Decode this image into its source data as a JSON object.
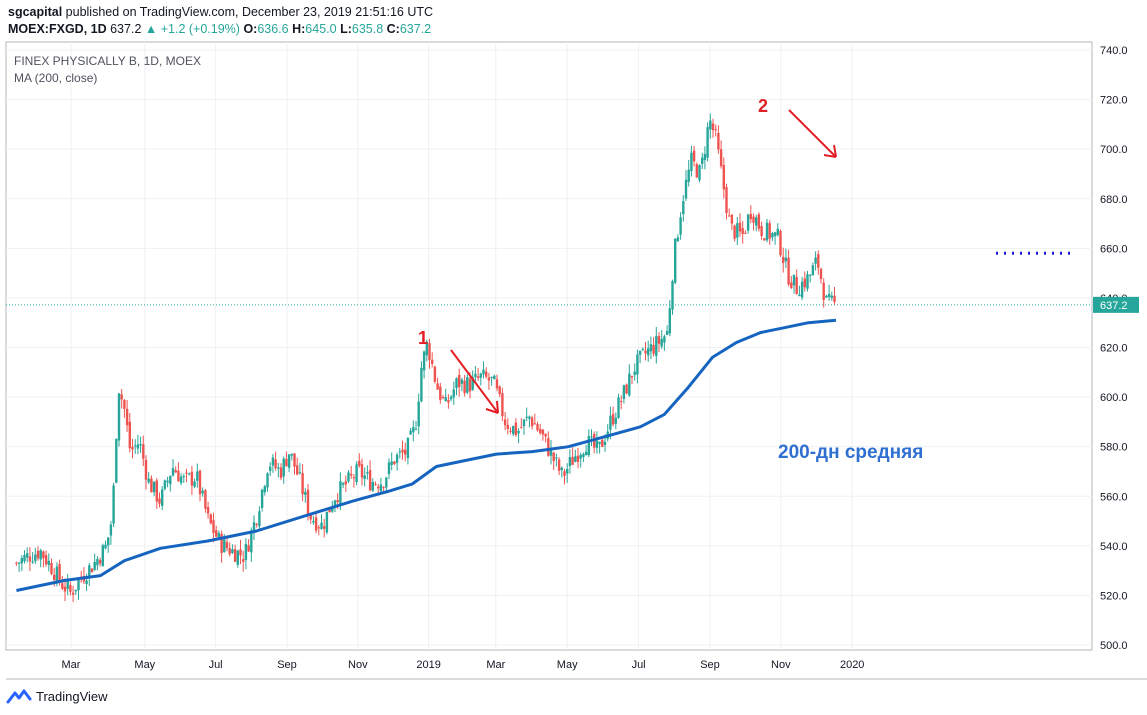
{
  "header": {
    "publisher": "sgcapital",
    "published_text": "published on TradingView.com, December 23, 2019 21:51:16 UTC",
    "symbol": "MOEX:FXGD, 1D",
    "last": "637.2",
    "change": "+1.2 (+0.19%)",
    "o_label": "O:",
    "o": "636.6",
    "h_label": "H:",
    "h": "645.0",
    "l_label": "L:",
    "l": "635.8",
    "c_label": "C:",
    "c": "637.2"
  },
  "footer": {
    "brand": "TradingView",
    "logo_icon": "tradingview-logo-icon"
  },
  "chart_data": {
    "type": "candlestick",
    "instrument": "FINEX PHYSICALLY B, 1D, MOEX",
    "indicator": "MA (200, close)",
    "ylim": [
      500,
      740
    ],
    "y_ticks": [
      "740.0",
      "720.0",
      "700.0",
      "680.0",
      "660.0",
      "640.0",
      "620.0",
      "600.0",
      "580.0",
      "560.0",
      "540.0",
      "520.0",
      "500.0"
    ],
    "x_ticks": [
      {
        "label": "Mar",
        "t": 0.091
      },
      {
        "label": "May",
        "t": 0.214
      },
      {
        "label": "Jul",
        "t": 0.332
      },
      {
        "label": "Sep",
        "t": 0.451
      },
      {
        "label": "Nov",
        "t": 0.569
      },
      {
        "label": "2019",
        "t": 0.687
      },
      {
        "label": "Mar",
        "t": 0.799
      },
      {
        "label": "May",
        "t": 0.918
      },
      {
        "label": "Jul",
        "t": 1.037
      },
      {
        "label": "Sep",
        "t": 1.156
      },
      {
        "label": "Nov",
        "t": 1.274
      },
      {
        "label": "2020",
        "t": 1.393
      }
    ],
    "last_price": 637.2,
    "last_price_label": "637.2",
    "close_path": [
      [
        0.0,
        533
      ],
      [
        0.02,
        536
      ],
      [
        0.04,
        538
      ],
      [
        0.06,
        531
      ],
      [
        0.075,
        525
      ],
      [
        0.09,
        521
      ],
      [
        0.11,
        528
      ],
      [
        0.13,
        533
      ],
      [
        0.15,
        540
      ],
      [
        0.16,
        552
      ],
      [
        0.17,
        605
      ],
      [
        0.18,
        595
      ],
      [
        0.19,
        578
      ],
      [
        0.205,
        582
      ],
      [
        0.22,
        566
      ],
      [
        0.24,
        558
      ],
      [
        0.26,
        572
      ],
      [
        0.28,
        566
      ],
      [
        0.3,
        568
      ],
      [
        0.32,
        550
      ],
      [
        0.34,
        541
      ],
      [
        0.36,
        538
      ],
      [
        0.38,
        536
      ],
      [
        0.4,
        552
      ],
      [
        0.42,
        574
      ],
      [
        0.44,
        570
      ],
      [
        0.455,
        578
      ],
      [
        0.47,
        568
      ],
      [
        0.49,
        552
      ],
      [
        0.51,
        548
      ],
      [
        0.53,
        560
      ],
      [
        0.55,
        565
      ],
      [
        0.57,
        570
      ],
      [
        0.59,
        566
      ],
      [
        0.61,
        566
      ],
      [
        0.63,
        575
      ],
      [
        0.65,
        578
      ],
      [
        0.665,
        588
      ],
      [
        0.675,
        612
      ],
      [
        0.685,
        622
      ],
      [
        0.7,
        605
      ],
      [
        0.715,
        596
      ],
      [
        0.735,
        606
      ],
      [
        0.755,
        605
      ],
      [
        0.775,
        608
      ],
      [
        0.795,
        606
      ],
      [
        0.815,
        590
      ],
      [
        0.835,
        586
      ],
      [
        0.855,
        592
      ],
      [
        0.875,
        585
      ],
      [
        0.895,
        575
      ],
      [
        0.91,
        568
      ],
      [
        0.93,
        576
      ],
      [
        0.95,
        582
      ],
      [
        0.97,
        578
      ],
      [
        0.99,
        590
      ],
      [
        1.01,
        600
      ],
      [
        1.03,
        612
      ],
      [
        1.05,
        618
      ],
      [
        1.07,
        622
      ],
      [
        1.085,
        626
      ],
      [
        1.095,
        655
      ],
      [
        1.11,
        680
      ],
      [
        1.125,
        695
      ],
      [
        1.14,
        690
      ],
      [
        1.155,
        712
      ],
      [
        1.165,
        705
      ],
      [
        1.175,
        690
      ],
      [
        1.19,
        668
      ],
      [
        1.21,
        665
      ],
      [
        1.225,
        676
      ],
      [
        1.24,
        668
      ],
      [
        1.255,
        666
      ],
      [
        1.27,
        664
      ],
      [
        1.285,
        650
      ],
      [
        1.3,
        644
      ],
      [
        1.32,
        648
      ],
      [
        1.335,
        655
      ],
      [
        1.35,
        638
      ],
      [
        1.365,
        637
      ]
    ],
    "ma_line": [
      [
        0.0,
        522
      ],
      [
        0.08,
        526
      ],
      [
        0.14,
        528
      ],
      [
        0.18,
        534
      ],
      [
        0.24,
        539
      ],
      [
        0.32,
        542
      ],
      [
        0.4,
        546
      ],
      [
        0.48,
        552
      ],
      [
        0.56,
        558
      ],
      [
        0.62,
        562
      ],
      [
        0.66,
        565
      ],
      [
        0.7,
        572
      ],
      [
        0.74,
        574
      ],
      [
        0.8,
        577
      ],
      [
        0.86,
        578
      ],
      [
        0.92,
        580
      ],
      [
        0.98,
        584
      ],
      [
        1.04,
        588
      ],
      [
        1.08,
        593
      ],
      [
        1.12,
        604
      ],
      [
        1.16,
        616
      ],
      [
        1.2,
        622
      ],
      [
        1.24,
        626
      ],
      [
        1.28,
        628
      ],
      [
        1.32,
        630
      ],
      [
        1.366,
        631
      ]
    ],
    "annotations": [
      {
        "label": "1",
        "color": "#e31e24"
      },
      {
        "label": "2",
        "color": "#e31e24"
      },
      {
        "label": "200-дн средняя",
        "color": "#2f6fd1"
      }
    ],
    "resistance_level": 658
  }
}
